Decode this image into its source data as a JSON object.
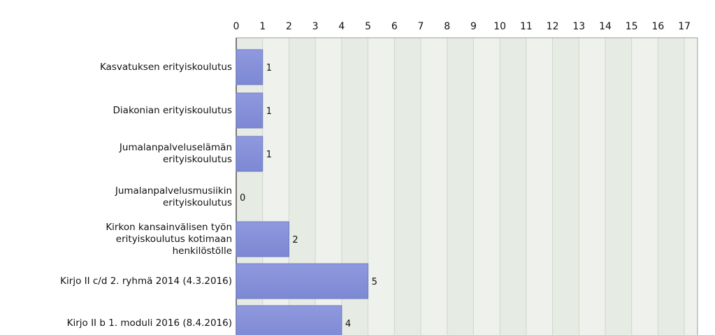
{
  "chart_data": {
    "type": "bar",
    "orientation": "horizontal",
    "title": "",
    "xlabel": "",
    "ylabel": "",
    "xlim": [
      0,
      17.5
    ],
    "x_ticks": [
      "0",
      "1",
      "2",
      "3",
      "4",
      "5",
      "6",
      "7",
      "8",
      "9",
      "10",
      "11",
      "12",
      "13",
      "14",
      "15",
      "16",
      "17"
    ],
    "grid": true,
    "categories": [
      "Kasvatuksen erityiskoulutus",
      "Diakonian erityiskoulutus",
      "Jumalanpalveluselämän\nerityiskoulutus",
      "Jumalanpalvelusmusiikin\nerityiskoulutus",
      "Kirkon kansainvälisen työn\nerityiskoulutus kotimaan\nhenkilöstölle",
      "Kirjo II c/d 2. ryhmä 2014 (4.3.2016)",
      "Kirjo II b 1. moduli 2016 (8.4.2016)"
    ],
    "values": [
      1,
      1,
      1,
      0,
      2,
      5,
      4
    ],
    "data_labels": [
      "1",
      "1",
      "1",
      "0",
      "2",
      "5",
      "4"
    ],
    "colors": {
      "bar": "#7d88d4",
      "bar_edge": "#6f7ac4",
      "plot_bg": "#eef1ec",
      "band_alt": "#e6ebe3",
      "grid": "#d0d7cc"
    }
  }
}
